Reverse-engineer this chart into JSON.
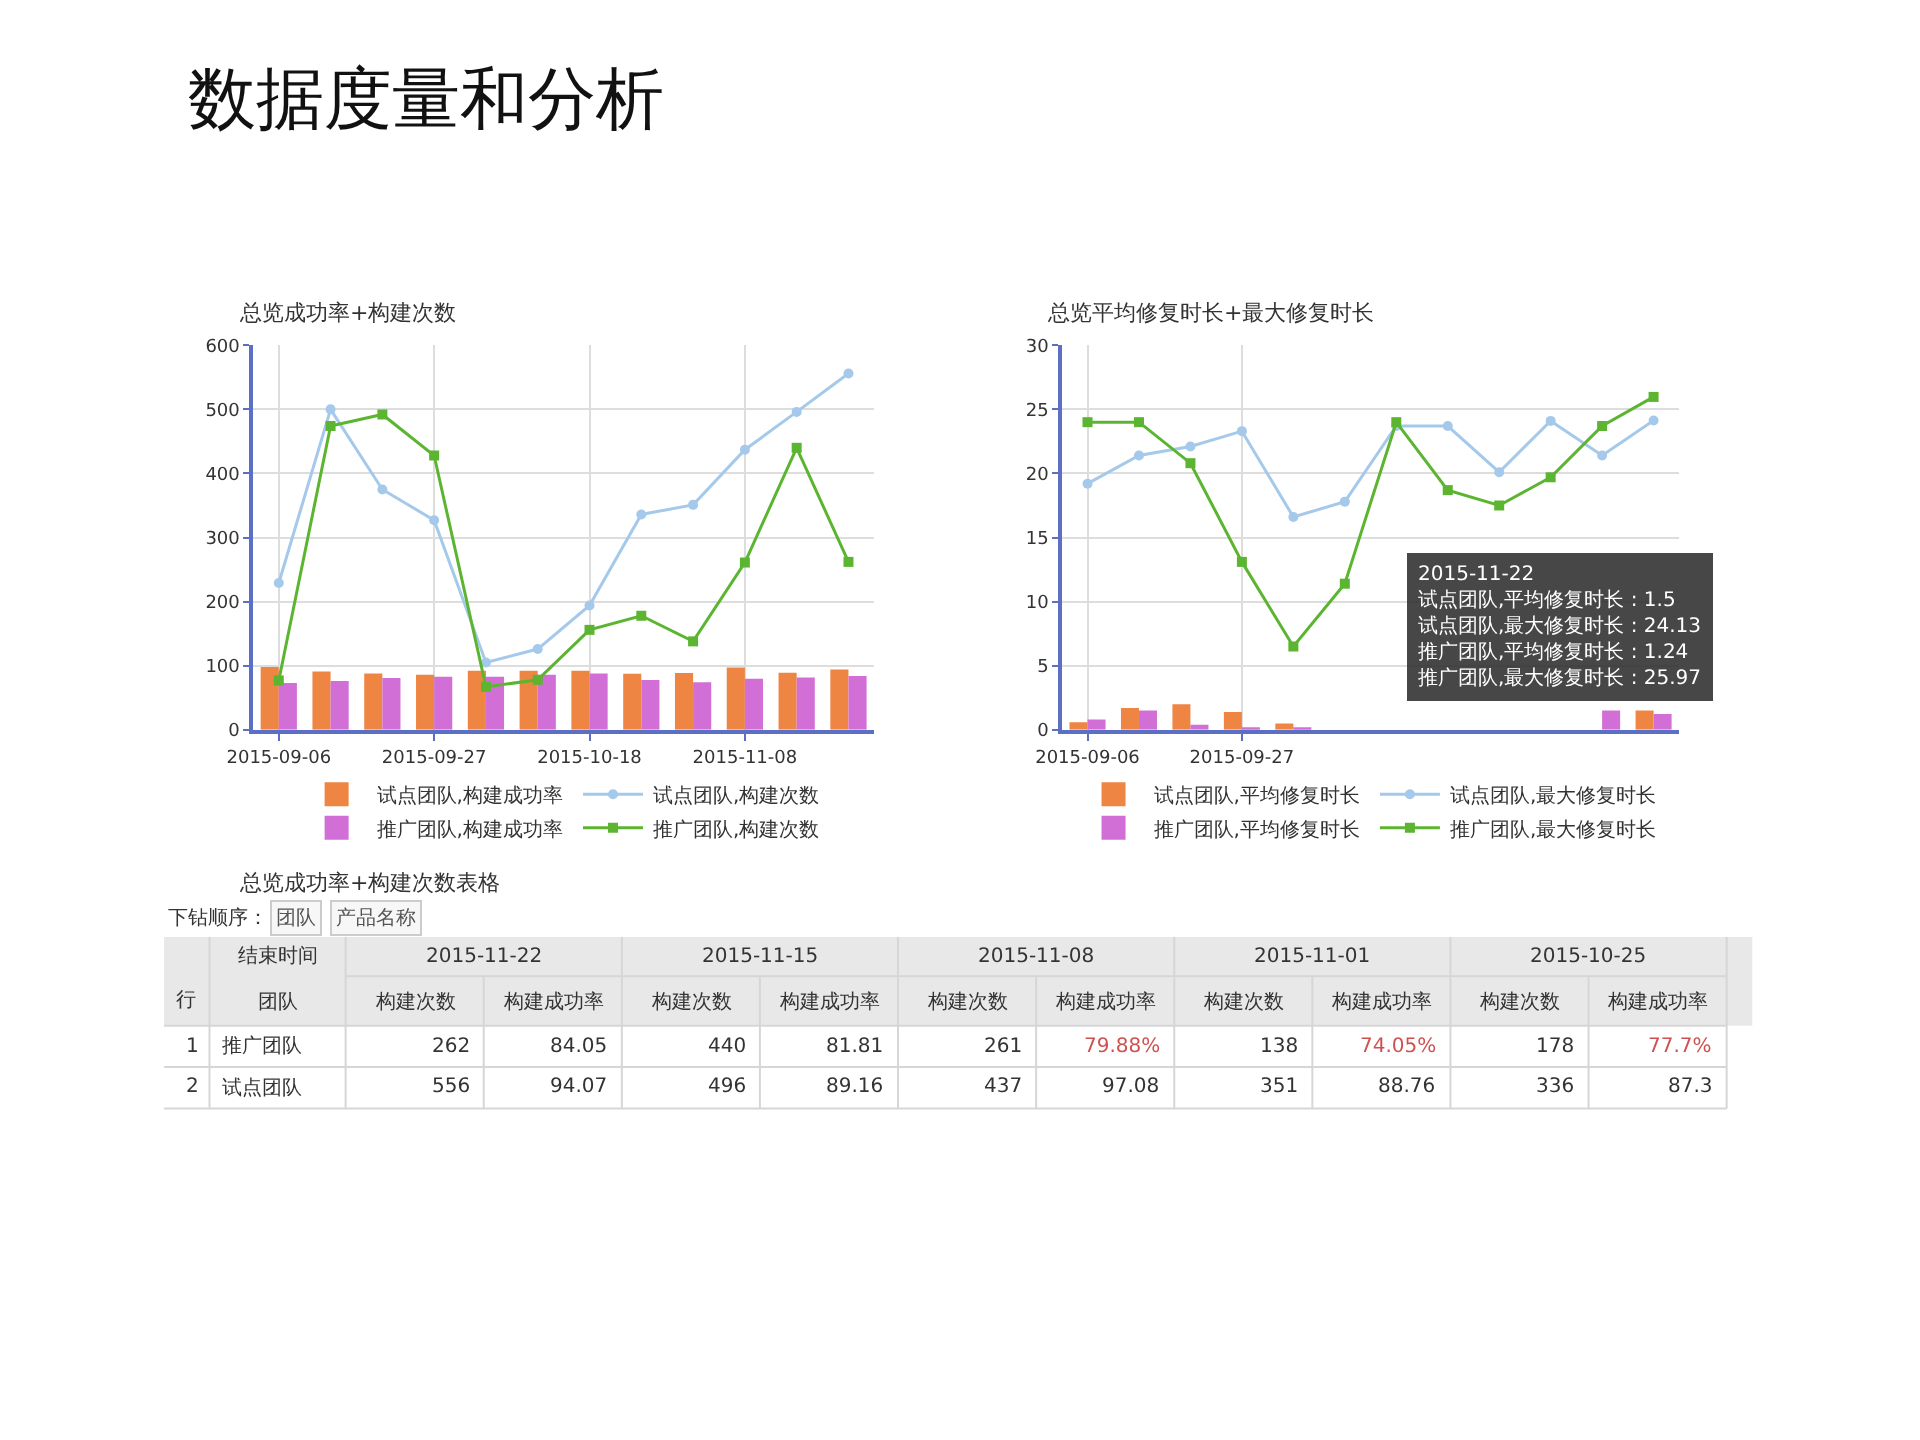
{
  "chart_data": [
    {
      "type": "other",
      "title": "数据度量和分析"
    },
    {
      "type": "bar",
      "title": "总览成功率+构建次数",
      "categories": [
        "2015-09-06",
        null,
        null,
        "2015-09-27",
        null,
        null,
        "2015-10-18",
        null,
        null,
        "2015-11-08",
        null,
        null
      ],
      "series": [
        {
          "name": "试点团队,构建成功率",
          "type": "bar",
          "color": "#ef8543",
          "values": [
            98,
            91,
            88,
            86,
            92,
            92,
            92,
            87.3,
            88.76,
            97.08,
            89.16,
            94.07
          ]
        },
        {
          "name": "试点团队,构建次数",
          "type": "line",
          "marker": "circle",
          "color": "#a4c9ea",
          "values": [
            229,
            500,
            375,
            327,
            105,
            126,
            194,
            336,
            351,
            437,
            496,
            556
          ]
        },
        {
          "name": "推广团队,构建成功率",
          "type": "bar",
          "color": "#d16fd6",
          "values": [
            73,
            76,
            81,
            83,
            83,
            86,
            88,
            77.7,
            74.05,
            79.88,
            81.81,
            84.05
          ]
        },
        {
          "name": "推广团队,构建次数",
          "type": "line",
          "marker": "square",
          "color": "#5cb531",
          "values": [
            77,
            474,
            492,
            428,
            67,
            78,
            156,
            178,
            138,
            261,
            440,
            262
          ]
        }
      ],
      "ylim": [
        0,
        600
      ],
      "yticks": [
        0,
        100,
        200,
        300,
        400,
        500,
        600
      ],
      "grid": true,
      "legend": "bottom"
    },
    {
      "type": "bar",
      "title": "总览平均修复时长+最大修复时长",
      "categories": [
        "2015-09-06",
        null,
        null,
        "2015-09-27",
        null,
        null,
        null,
        null,
        null,
        null,
        null,
        null
      ],
      "series": [
        {
          "name": "试点团队,平均修复时长",
          "type": "bar",
          "color": "#ef8543",
          "values": [
            0.6,
            1.7,
            2.0,
            1.4,
            0.5,
            null,
            null,
            null,
            null,
            null,
            null,
            1.5
          ]
        },
        {
          "name": "试点团队,最大修复时长",
          "type": "line",
          "marker": "circle",
          "color": "#a4c9ea",
          "values": [
            19.2,
            21.4,
            22.1,
            23.3,
            16.6,
            17.8,
            23.7,
            23.7,
            20.1,
            24.1,
            21.4,
            24.13
          ]
        },
        {
          "name": "推广团队,平均修复时长",
          "type": "bar",
          "color": "#d16fd6",
          "values": [
            0.8,
            1.5,
            0.4,
            0.2,
            0.1,
            null,
            null,
            null,
            null,
            null,
            1.5,
            1.24
          ]
        },
        {
          "name": "推广团队,最大修复时长",
          "type": "line",
          "marker": "square",
          "color": "#5cb531",
          "values": [
            24.0,
            24.0,
            20.8,
            13.1,
            6.5,
            11.4,
            24.0,
            18.7,
            17.5,
            19.7,
            23.7,
            25.97
          ]
        }
      ],
      "ylim": [
        0,
        30
      ],
      "yticks": [
        0,
        5,
        10,
        15,
        20,
        25,
        30
      ],
      "grid": true,
      "legend": "bottom",
      "annotations": [
        "2015-11-22\n试点团队,平均修复时长 : 1.5\n试点团队,最大修复时长 : 24.13\n推广团队,平均修复时长 : 1.24\n推广团队,最大修复时长 : 25.97"
      ]
    },
    {
      "type": "other",
      "title": "总览成功率+构建次数表格",
      "data_labels": true,
      "annotations": [
        "下钻顺序：",
        "团队",
        "产品名称",
        "结束时间",
        "行",
        "团队",
        "2015-11-22",
        "2015-11-15",
        "2015-11-08",
        "2015-11-01",
        "2015-10-25",
        "1",
        "2"
      ],
      "categories": [
        "构建次数",
        "构建成功率",
        "构建次数",
        "构建成功率",
        "构建次数",
        "构建成功率",
        "构建次数",
        "构建成功率",
        "构建次数",
        "构建成功率"
      ],
      "series": [
        {
          "name": "推广团队",
          "values": [
            262,
            84.05,
            440,
            81.81,
            261,
            79.88,
            138,
            74.05,
            178,
            77.7
          ],
          "value_labels": [
            "262",
            "84.05",
            "440",
            "81.81",
            "261",
            "79.88%",
            "138",
            "74.05%",
            "178",
            "77.7%"
          ],
          "colors": [
            "#333333",
            "#333333",
            "#333333",
            "#333333",
            "#333333",
            "#d05050",
            "#333333",
            "#d05050",
            "#333333",
            "#d05050"
          ]
        },
        {
          "name": "试点团队",
          "values": [
            556,
            94.07,
            496,
            89.16,
            437,
            97.08,
            351,
            88.76,
            336,
            87.3
          ],
          "value_labels": [
            "556",
            "94.07",
            "496",
            "89.16",
            "437",
            "97.08",
            "351",
            "88.76",
            "336",
            "87.3"
          ]
        }
      ]
    }
  ]
}
